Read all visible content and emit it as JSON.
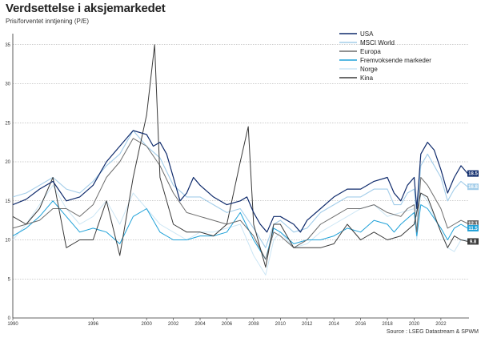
{
  "title": "Verdsettelse i aksjemarkedet",
  "subtitle": "Pris/forventet inntjening (P/E)",
  "source": "Source : LSEG Datastream & SPWM",
  "chart_data": {
    "type": "line",
    "ylim": [
      0,
      36
    ],
    "yticks": [
      0,
      5,
      10,
      15,
      20,
      25,
      30,
      35
    ],
    "xlim": [
      1990,
      2024.1
    ],
    "xticks": [
      1990,
      1996,
      2000,
      2002,
      2004,
      2006,
      2008,
      2010,
      2012,
      2014,
      2016,
      2018,
      2020,
      2022
    ],
    "grid": "horizontal dotted",
    "legend_position": "top-right",
    "series": [
      {
        "name": "USA",
        "color": "#0e2a6b",
        "width": 1.2,
        "end_label": "18.5",
        "points": [
          [
            1990,
            14.5
          ],
          [
            1991,
            15.2
          ],
          [
            1992,
            16.5
          ],
          [
            1993,
            17.5
          ],
          [
            1994,
            15
          ],
          [
            1995,
            15.5
          ],
          [
            1996,
            17
          ],
          [
            1997,
            20
          ],
          [
            1998,
            22
          ],
          [
            1999,
            24
          ],
          [
            2000,
            23.5
          ],
          [
            2000.5,
            22
          ],
          [
            2001,
            22.5
          ],
          [
            2001.5,
            21
          ],
          [
            2002,
            18
          ],
          [
            2002.5,
            15
          ],
          [
            2003,
            16
          ],
          [
            2003.5,
            18
          ],
          [
            2004,
            17
          ],
          [
            2005,
            15.5
          ],
          [
            2006,
            14.5
          ],
          [
            2007,
            15
          ],
          [
            2007.5,
            15.5
          ],
          [
            2008,
            13.5
          ],
          [
            2008.5,
            12
          ],
          [
            2009,
            11
          ],
          [
            2009.5,
            13
          ],
          [
            2010,
            13
          ],
          [
            2011,
            12
          ],
          [
            2011.5,
            11
          ],
          [
            2012,
            12.5
          ],
          [
            2013,
            14
          ],
          [
            2014,
            15.5
          ],
          [
            2015,
            16.5
          ],
          [
            2016,
            16.5
          ],
          [
            2017,
            17.5
          ],
          [
            2018,
            18
          ],
          [
            2018.5,
            16
          ],
          [
            2019,
            15
          ],
          [
            2019.5,
            17
          ],
          [
            2020,
            18
          ],
          [
            2020.2,
            14
          ],
          [
            2020.5,
            21
          ],
          [
            2021,
            22.5
          ],
          [
            2021.5,
            21.5
          ],
          [
            2022,
            19
          ],
          [
            2022.5,
            16
          ],
          [
            2023,
            18
          ],
          [
            2023.5,
            19.5
          ],
          [
            2024,
            18.5
          ]
        ]
      },
      {
        "name": "MSCI World",
        "color": "#a3cde9",
        "width": 1.1,
        "end_label": "16.8",
        "points": [
          [
            1990,
            15.5
          ],
          [
            1991,
            16
          ],
          [
            1992,
            17
          ],
          [
            1993,
            18
          ],
          [
            1994,
            16.5
          ],
          [
            1995,
            16
          ],
          [
            1996,
            17.5
          ],
          [
            1997,
            19.5
          ],
          [
            1998,
            21
          ],
          [
            1999,
            24
          ],
          [
            2000,
            22
          ],
          [
            2001,
            20.5
          ],
          [
            2002,
            17
          ],
          [
            2003,
            15.5
          ],
          [
            2004,
            15.5
          ],
          [
            2005,
            14.5
          ],
          [
            2006,
            13.5
          ],
          [
            2007,
            14
          ],
          [
            2008,
            11.5
          ],
          [
            2008.9,
            9
          ],
          [
            2009.5,
            12
          ],
          [
            2010,
            12.5
          ],
          [
            2011,
            11
          ],
          [
            2012,
            11.5
          ],
          [
            2013,
            13.5
          ],
          [
            2014,
            14.5
          ],
          [
            2015,
            15.5
          ],
          [
            2016,
            15.5
          ],
          [
            2017,
            16.5
          ],
          [
            2018,
            16.5
          ],
          [
            2018.5,
            14.5
          ],
          [
            2019,
            14.5
          ],
          [
            2019.5,
            16
          ],
          [
            2020,
            16.5
          ],
          [
            2020.2,
            13
          ],
          [
            2020.5,
            19.5
          ],
          [
            2021,
            21
          ],
          [
            2022,
            18
          ],
          [
            2022.5,
            15
          ],
          [
            2023,
            16.5
          ],
          [
            2023.5,
            17.5
          ],
          [
            2024,
            16.8
          ]
        ]
      },
      {
        "name": "Europa",
        "color": "#6d6d6d",
        "width": 1.0,
        "end_label": "12.1",
        "points": [
          [
            1990,
            11.5
          ],
          [
            1991,
            12
          ],
          [
            1992,
            12.5
          ],
          [
            1993,
            14
          ],
          [
            1994,
            14
          ],
          [
            1995,
            13
          ],
          [
            1996,
            14.5
          ],
          [
            1997,
            18
          ],
          [
            1998,
            20
          ],
          [
            1999,
            23
          ],
          [
            2000,
            22
          ],
          [
            2001,
            19.5
          ],
          [
            2002,
            16
          ],
          [
            2003,
            13.5
          ],
          [
            2004,
            13
          ],
          [
            2005,
            12.5
          ],
          [
            2006,
            12
          ],
          [
            2007,
            12.5
          ],
          [
            2008,
            10.5
          ],
          [
            2008.9,
            7.5
          ],
          [
            2009.5,
            11
          ],
          [
            2010,
            10.5
          ],
          [
            2011,
            9
          ],
          [
            2012,
            10
          ],
          [
            2013,
            12
          ],
          [
            2014,
            13
          ],
          [
            2015,
            14
          ],
          [
            2016,
            14
          ],
          [
            2017,
            14.5
          ],
          [
            2018,
            13.5
          ],
          [
            2019,
            13
          ],
          [
            2019.5,
            14
          ],
          [
            2020,
            14.5
          ],
          [
            2020.2,
            11
          ],
          [
            2020.5,
            18
          ],
          [
            2021,
            17
          ],
          [
            2022,
            14
          ],
          [
            2022.5,
            11.5
          ],
          [
            2023,
            12
          ],
          [
            2023.5,
            12.5
          ],
          [
            2024,
            12.1
          ]
        ]
      },
      {
        "name": "Fremvoksende markeder",
        "color": "#1fa1d8",
        "width": 1.0,
        "end_label": "11.5",
        "points": [
          [
            1990,
            10.5
          ],
          [
            1991,
            11.5
          ],
          [
            1992,
            13
          ],
          [
            1993,
            15
          ],
          [
            1994,
            13
          ],
          [
            1995,
            11
          ],
          [
            1996,
            11.5
          ],
          [
            1997,
            11
          ],
          [
            1998,
            9.5
          ],
          [
            1999,
            13
          ],
          [
            2000,
            14
          ],
          [
            2001,
            11
          ],
          [
            2002,
            10
          ],
          [
            2003,
            10
          ],
          [
            2004,
            10.5
          ],
          [
            2005,
            10.5
          ],
          [
            2006,
            11
          ],
          [
            2007,
            13.5
          ],
          [
            2008,
            10
          ],
          [
            2008.9,
            7.5
          ],
          [
            2009.5,
            11.5
          ],
          [
            2010,
            11
          ],
          [
            2011,
            9.5
          ],
          [
            2012,
            10
          ],
          [
            2013,
            10
          ],
          [
            2014,
            10.5
          ],
          [
            2015,
            11.5
          ],
          [
            2016,
            11
          ],
          [
            2017,
            12.5
          ],
          [
            2018,
            12
          ],
          [
            2018.5,
            11
          ],
          [
            2019,
            12
          ],
          [
            2020,
            13.5
          ],
          [
            2020.2,
            10.5
          ],
          [
            2020.5,
            14.5
          ],
          [
            2021,
            14
          ],
          [
            2022,
            11.5
          ],
          [
            2022.5,
            10
          ],
          [
            2023,
            11.5
          ],
          [
            2023.5,
            12
          ],
          [
            2024,
            11.5
          ]
        ]
      },
      {
        "name": "Norge",
        "color": "#cce6f5",
        "width": 1.0,
        "end_label": "",
        "points": [
          [
            1990,
            10
          ],
          [
            1991,
            12
          ],
          [
            1992,
            14.5
          ],
          [
            1993,
            17
          ],
          [
            1994,
            14
          ],
          [
            1995,
            12
          ],
          [
            1996,
            13
          ],
          [
            1997,
            15
          ],
          [
            1998,
            12
          ],
          [
            1999,
            16
          ],
          [
            2000,
            14
          ],
          [
            2001,
            12
          ],
          [
            2002,
            11
          ],
          [
            2003,
            10
          ],
          [
            2004,
            11
          ],
          [
            2005,
            11
          ],
          [
            2006,
            11.5
          ],
          [
            2007,
            12
          ],
          [
            2008,
            8
          ],
          [
            2008.9,
            5.5
          ],
          [
            2009.5,
            10
          ],
          [
            2010,
            11
          ],
          [
            2011,
            9
          ],
          [
            2012,
            9.5
          ],
          [
            2013,
            11
          ],
          [
            2014,
            12
          ],
          [
            2015,
            13
          ],
          [
            2016,
            14
          ],
          [
            2017,
            14.5
          ],
          [
            2018,
            13
          ],
          [
            2019,
            13.5
          ],
          [
            2020,
            14
          ],
          [
            2020.2,
            10
          ],
          [
            2020.5,
            16
          ],
          [
            2021,
            15
          ],
          [
            2022,
            11
          ],
          [
            2022.5,
            9
          ],
          [
            2023,
            8.5
          ],
          [
            2023.5,
            10
          ],
          [
            2024,
            10
          ]
        ]
      },
      {
        "name": "Kina",
        "color": "#3a3a3a",
        "width": 1.0,
        "end_label": "9.8",
        "points": [
          [
            1990,
            13
          ],
          [
            1991,
            12
          ],
          [
            1992,
            14
          ],
          [
            1993,
            18
          ],
          [
            1994,
            9
          ],
          [
            1995,
            10
          ],
          [
            1996,
            10
          ],
          [
            1997,
            15
          ],
          [
            1998,
            8
          ],
          [
            1999,
            18
          ],
          [
            2000,
            26
          ],
          [
            2000.6,
            35
          ],
          [
            2001,
            18
          ],
          [
            2002,
            12
          ],
          [
            2003,
            11
          ],
          [
            2004,
            11
          ],
          [
            2005,
            10.5
          ],
          [
            2006,
            12
          ],
          [
            2007,
            20
          ],
          [
            2007.6,
            24.5
          ],
          [
            2008,
            12
          ],
          [
            2008.9,
            6.5
          ],
          [
            2009.5,
            12
          ],
          [
            2010,
            12
          ],
          [
            2011,
            9
          ],
          [
            2012,
            9
          ],
          [
            2013,
            9
          ],
          [
            2014,
            9.5
          ],
          [
            2015,
            12
          ],
          [
            2016,
            10
          ],
          [
            2017,
            11
          ],
          [
            2018,
            10
          ],
          [
            2019,
            10.5
          ],
          [
            2020,
            12
          ],
          [
            2020.5,
            16
          ],
          [
            2021,
            15.5
          ],
          [
            2022,
            11
          ],
          [
            2022.5,
            9
          ],
          [
            2023,
            10.5
          ],
          [
            2023.5,
            10
          ],
          [
            2024,
            9.8
          ]
        ]
      }
    ]
  }
}
